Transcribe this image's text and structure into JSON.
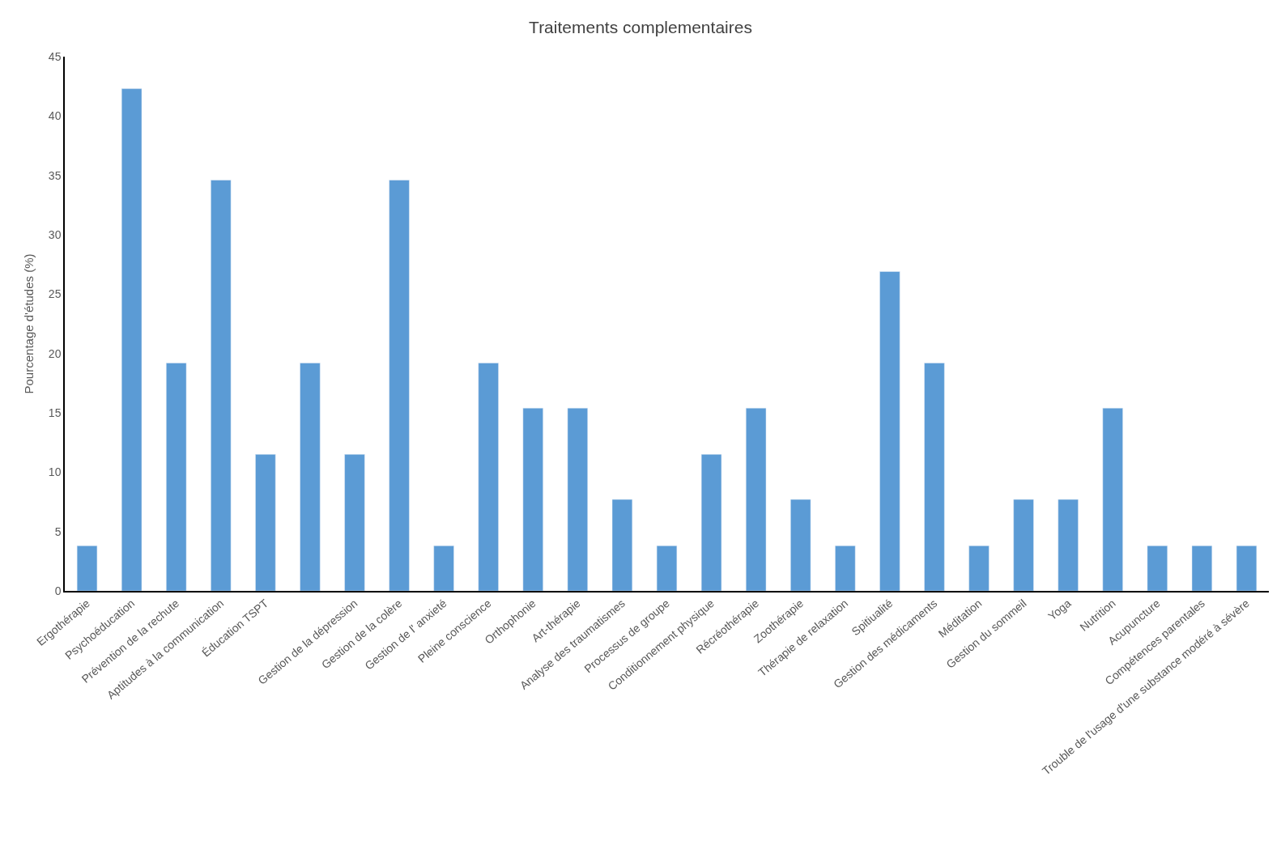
{
  "chart_data": {
    "type": "bar",
    "title": "Traitements complementaires",
    "ylabel": "Pourcentage d'études (%)",
    "categories": [
      "Ergothérapie",
      "Psychoéducation",
      "Prévention de la rechute",
      "Aptitudes à la communication",
      "Éducation TSPT",
      null,
      "Gestion de la dépression",
      "Gestion de la colère",
      "Gestion de l' anxieté",
      "Pleine conscience",
      "Orthophonie",
      "Art-thérapie",
      "Analyse des traumatismes",
      "Processus de groupe",
      "Conditionnement physique",
      "Récréothérapie",
      "Zoothérapie",
      "Thérapie de relaxation",
      "Spitiualité",
      "Gestion des médicaments",
      "Méditation",
      "Gestion du sommeil",
      "Yoga",
      "Nutrition",
      "Acupuncture",
      "Compétences parentales",
      "Trouble de l'usage d'une substance modéré à sévère"
    ],
    "values": [
      3.8,
      42.3,
      19.2,
      34.6,
      11.5,
      19.2,
      11.5,
      34.6,
      3.8,
      19.2,
      15.4,
      15.4,
      7.7,
      3.8,
      11.5,
      15.4,
      7.7,
      3.8,
      26.9,
      19.2,
      3.8,
      7.7,
      7.7,
      15.4,
      3.8,
      3.8,
      3.8
    ],
    "color": "#5b9bd5",
    "ylim": [
      0,
      45
    ],
    "yticks": [
      0,
      5,
      10,
      15,
      20,
      25,
      30,
      35,
      40,
      45
    ],
    "legend": false
  }
}
